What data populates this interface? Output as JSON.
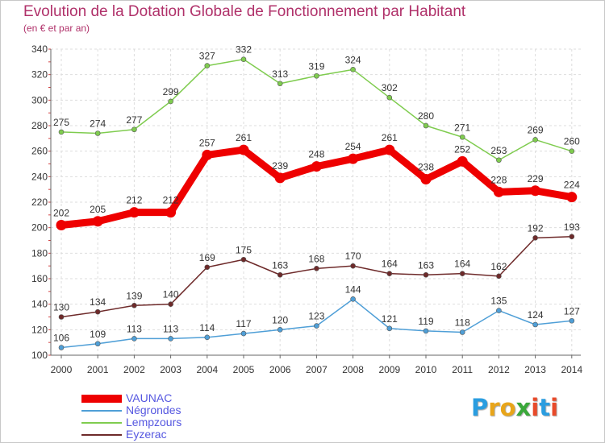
{
  "chart_data": {
    "type": "line",
    "title": "Evolution de la Dotation Globale de Fonctionnement par Habitant",
    "subtitle": "(en € et par an)",
    "xlabel": "",
    "ylabel": "",
    "ylim": [
      100,
      340
    ],
    "yticks": [
      100,
      120,
      140,
      160,
      180,
      200,
      220,
      240,
      260,
      280,
      300,
      320,
      340
    ],
    "categories": [
      "2000",
      "2001",
      "2002",
      "2003",
      "2004",
      "2005",
      "2006",
      "2007",
      "2008",
      "2009",
      "2010",
      "2011",
      "2012",
      "2013",
      "2014"
    ],
    "grid": true,
    "legend_position": "bottom-left",
    "series": [
      {
        "name": "Lempzours",
        "color": "#7fcc4f",
        "values": [
          275,
          274,
          277,
          299,
          327,
          332,
          313,
          319,
          324,
          302,
          280,
          271,
          253,
          269,
          260
        ]
      },
      {
        "name": "Eyzerac",
        "color": "#6e2a2a",
        "values": [
          130,
          134,
          139,
          140,
          169,
          175,
          163,
          168,
          170,
          164,
          163,
          164,
          162,
          192,
          193
        ]
      },
      {
        "name": "Négrondes",
        "color": "#4f9fd7",
        "values": [
          106,
          109,
          113,
          113,
          114,
          117,
          120,
          123,
          144,
          121,
          119,
          118,
          135,
          124,
          127
        ]
      },
      {
        "name": "VAUNAC",
        "color": "#ee0000",
        "values": [
          202,
          205,
          212,
          212,
          257,
          261,
          239,
          248,
          254,
          261,
          238,
          252,
          228,
          229,
          224
        ]
      }
    ]
  },
  "legend": [
    {
      "name": "VAUNAC",
      "color": "#ee0000"
    },
    {
      "name": "Négrondes",
      "color": "#4f9fd7"
    },
    {
      "name": "Lempzours",
      "color": "#7fcc4f"
    },
    {
      "name": "Eyzerac",
      "color": "#6e2a2a"
    }
  ],
  "logo": {
    "letters": [
      "P",
      "r",
      "o",
      "x",
      "i",
      "t",
      "i"
    ],
    "colors": [
      "#2a9de0",
      "#e8a51a",
      "#e8a51a",
      "#3aa83a",
      "#e84a2a",
      "#2a9de0",
      "#e84a2a"
    ]
  }
}
